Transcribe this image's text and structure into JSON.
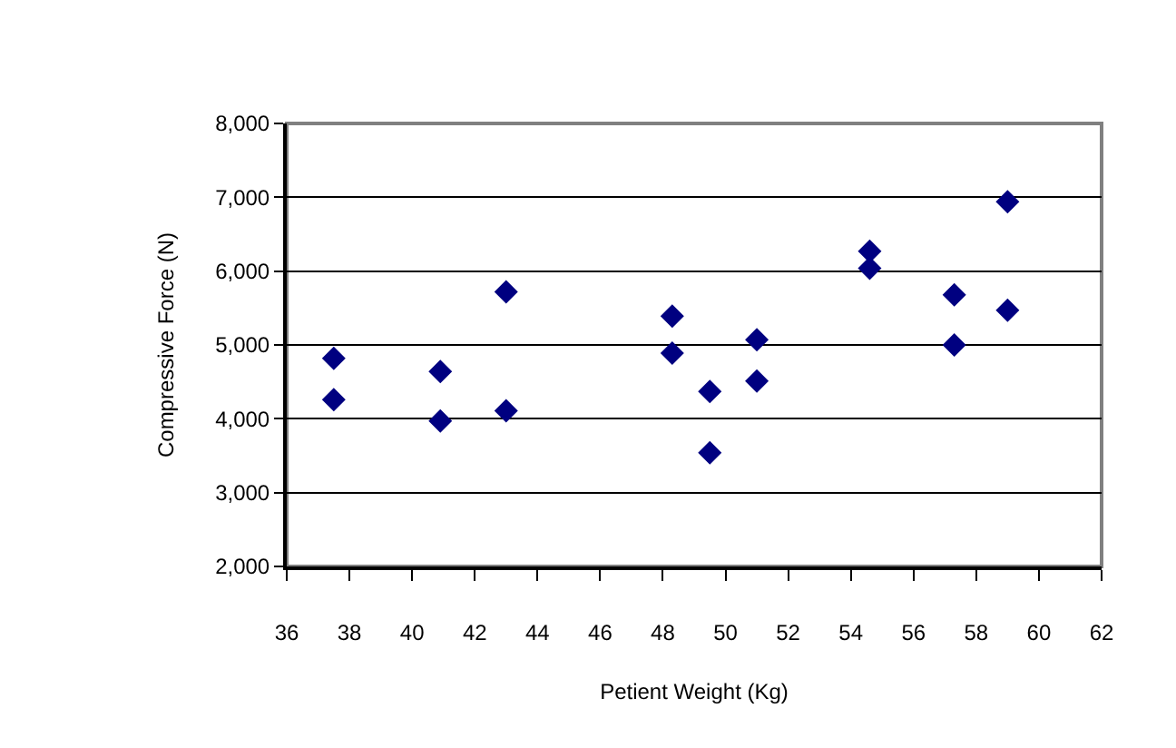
{
  "chart_data": {
    "type": "scatter",
    "xlabel": "Petient Weight (Kg)",
    "ylabel": "Compressive Force (N)",
    "x": [
      37.5,
      37.5,
      40.9,
      40.9,
      43.0,
      43.0,
      48.3,
      48.3,
      49.5,
      49.5,
      51.0,
      51.0,
      54.6,
      54.6,
      57.3,
      57.3,
      59.0,
      59.0
    ],
    "values": [
      4820,
      4260,
      4640,
      3970,
      5720,
      4110,
      5390,
      4890,
      4370,
      3540,
      5070,
      4510,
      6270,
      6040,
      5680,
      5000,
      6940,
      5470
    ],
    "color": "#000080",
    "marker": "diamond",
    "xlim": [
      36,
      62
    ],
    "xticks": [
      36,
      38,
      40,
      42,
      44,
      46,
      48,
      50,
      52,
      54,
      56,
      58,
      60,
      62
    ],
    "ylim": [
      2000,
      8000
    ],
    "yticks": [
      {
        "value": 2000,
        "label": "2,000"
      },
      {
        "value": 3000,
        "label": "3,000"
      },
      {
        "value": 4000,
        "label": "4,000"
      },
      {
        "value": 5000,
        "label": "5,000"
      },
      {
        "value": 6000,
        "label": "6,000"
      },
      {
        "value": 7000,
        "label": "7,000"
      },
      {
        "value": 8000,
        "label": "8,000"
      }
    ],
    "grid": "y",
    "legend": false
  }
}
